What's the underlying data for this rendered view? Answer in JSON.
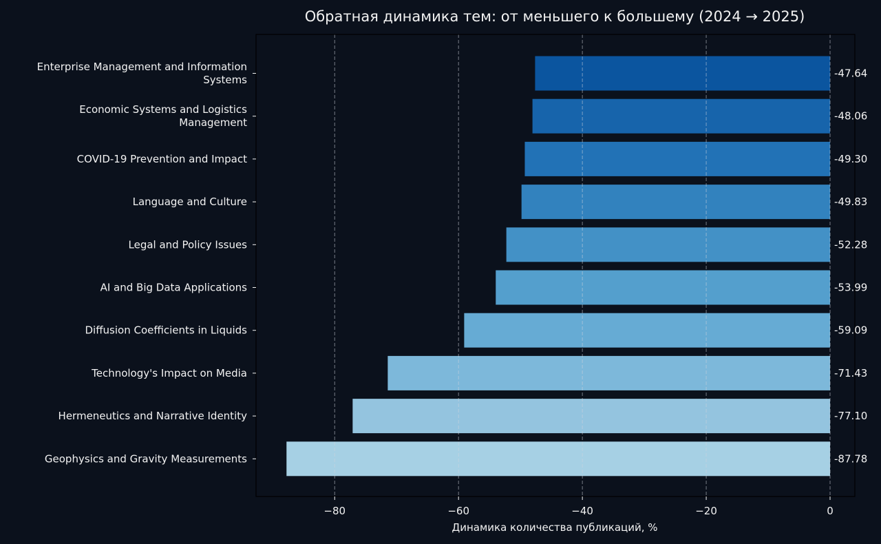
{
  "chart_data": {
    "type": "bar",
    "orientation": "horizontal",
    "title": "Обратная динамика тем: от меньшего к большему (2024 → 2025)",
    "xlabel": "Динамика количества публикаций, %",
    "ylabel": "",
    "xlim": [
      -92.7,
      4
    ],
    "xticks": [
      -80,
      -60,
      -40,
      -20,
      0
    ],
    "xtick_labels": [
      "−80",
      "−60",
      "−40",
      "−20",
      "0"
    ],
    "grid": "x, dashed",
    "categories": [
      [
        "Enterprise Management and Information",
        "Systems"
      ],
      [
        "Economic Systems and Logistics",
        "Management"
      ],
      [
        "COVID-19 Prevention and Impact"
      ],
      [
        "Language and Culture"
      ],
      [
        "Legal and Policy Issues"
      ],
      [
        "AI and Big Data Applications"
      ],
      [
        "Diffusion Coefficients in Liquids"
      ],
      [
        "Technology's Impact on Media"
      ],
      [
        "Hermeneutics and Narrative Identity"
      ],
      [
        "Geophysics and Gravity Measurements"
      ]
    ],
    "values": [
      -47.64,
      -48.06,
      -49.3,
      -49.83,
      -52.28,
      -53.99,
      -59.09,
      -71.43,
      -77.1,
      -87.78
    ],
    "value_labels": [
      "-47.64",
      "-48.06",
      "-49.30",
      "-49.83",
      "-52.28",
      "-53.99",
      "-59.09",
      "-71.43",
      "-77.10",
      "-87.78"
    ],
    "colors": [
      "#0b559f",
      "#1764ab",
      "#2272b6",
      "#3282be",
      "#4391c6",
      "#549fcd",
      "#66abd4",
      "#7db8da",
      "#94c4df",
      "#a6d0e4"
    ]
  }
}
